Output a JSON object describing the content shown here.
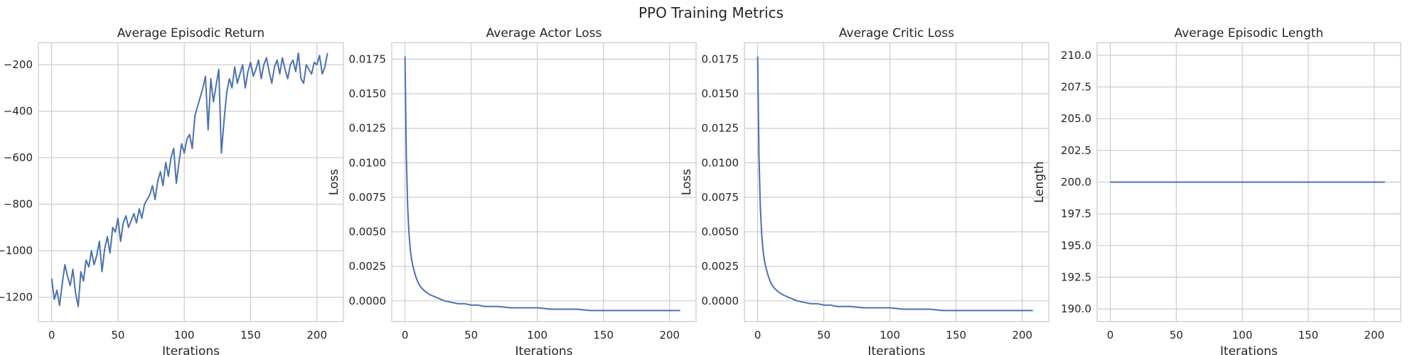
{
  "figure_title": "PPO Training Metrics",
  "colors": {
    "line": "#4c72b0",
    "grid": "#cccccc",
    "frame": "#cccccc",
    "text": "#262626"
  },
  "chart_data": [
    {
      "type": "line",
      "title": "Average Episodic Return",
      "xlabel": "Iterations",
      "ylabel": "",
      "xlim": [
        -10,
        220
      ],
      "ylim": [
        -1305,
        -105
      ],
      "xticks": [
        0,
        50,
        100,
        150,
        200
      ],
      "yticks": [
        -1200,
        -1000,
        -800,
        -600,
        -400,
        -200
      ],
      "xtick_labels": [
        "0",
        "50",
        "100",
        "150",
        "200"
      ],
      "ytick_labels": [
        "−1200",
        "−1000",
        "−800",
        "−600",
        "−400",
        "−200"
      ],
      "grid": true,
      "series": [
        {
          "x": [
            0,
            2,
            4,
            6,
            8,
            10,
            12,
            14,
            16,
            18,
            20,
            22,
            24,
            26,
            28,
            30,
            32,
            34,
            36,
            38,
            40,
            42,
            44,
            46,
            48,
            50,
            52,
            54,
            56,
            58,
            60,
            62,
            64,
            66,
            68,
            70,
            72,
            74,
            76,
            78,
            80,
            82,
            84,
            86,
            88,
            90,
            92,
            94,
            96,
            98,
            100,
            102,
            104,
            106,
            108,
            110,
            112,
            114,
            116,
            118,
            120,
            122,
            124,
            126,
            128,
            130,
            132,
            134,
            136,
            138,
            140,
            142,
            144,
            146,
            148,
            150,
            152,
            154,
            156,
            158,
            160,
            162,
            164,
            166,
            168,
            170,
            172,
            174,
            176,
            178,
            180,
            182,
            184,
            186,
            188,
            190,
            192,
            194,
            196,
            198,
            200,
            202,
            204,
            206,
            208
          ],
          "y": [
            -1120,
            -1210,
            -1170,
            -1235,
            -1140,
            -1060,
            -1110,
            -1150,
            -1080,
            -1180,
            -1240,
            -1090,
            -1130,
            -1040,
            -1070,
            -1000,
            -1060,
            -1020,
            -960,
            -1090,
            -990,
            -940,
            -1010,
            -900,
            -920,
            -860,
            -960,
            -880,
            -850,
            -900,
            -870,
            -840,
            -880,
            -820,
            -860,
            -800,
            -780,
            -760,
            -720,
            -780,
            -700,
            -660,
            -720,
            -620,
            -680,
            -600,
            -560,
            -710,
            -620,
            -540,
            -580,
            -520,
            -500,
            -560,
            -420,
            -380,
            -340,
            -300,
            -250,
            -480,
            -260,
            -360,
            -290,
            -220,
            -580,
            -440,
            -320,
            -260,
            -300,
            -210,
            -280,
            -240,
            -200,
            -300,
            -230,
            -190,
            -250,
            -220,
            -180,
            -260,
            -200,
            -170,
            -230,
            -280,
            -210,
            -180,
            -240,
            -170,
            -220,
            -260,
            -200,
            -180,
            -230,
            -150,
            -260,
            -280,
            -200,
            -220,
            -240,
            -190,
            -200,
            -160,
            -240,
            -210,
            -150
          ]
        }
      ]
    },
    {
      "type": "line",
      "title": "Average Actor Loss",
      "xlabel": "Iterations",
      "ylabel": "Loss",
      "xlim": [
        -10,
        220
      ],
      "ylim": [
        -0.0015,
        0.0187
      ],
      "xticks": [
        0,
        50,
        100,
        150,
        200
      ],
      "yticks": [
        0.0,
        0.0025,
        0.005,
        0.0075,
        0.01,
        0.0125,
        0.015,
        0.0175
      ],
      "xtick_labels": [
        "0",
        "50",
        "100",
        "150",
        "200"
      ],
      "ytick_labels": [
        "0.0000",
        "0.0025",
        "0.0050",
        "0.0075",
        "0.0100",
        "0.0125",
        "0.0150",
        "0.0175"
      ],
      "grid": true,
      "series": [
        {
          "x": [
            0,
            1,
            2,
            3,
            4,
            5,
            6,
            8,
            10,
            12,
            15,
            18,
            20,
            25,
            30,
            35,
            40,
            45,
            50,
            55,
            60,
            70,
            80,
            90,
            100,
            110,
            120,
            130,
            140,
            150,
            160,
            170,
            180,
            190,
            200,
            208
          ],
          "y": [
            0.0177,
            0.0105,
            0.0069,
            0.0049,
            0.0037,
            0.003,
            0.0025,
            0.0018,
            0.0013,
            0.001,
            0.0007,
            0.0005,
            0.0004,
            0.0002,
            0.0,
            -0.0001,
            -0.0002,
            -0.0002,
            -0.0003,
            -0.0003,
            -0.0004,
            -0.0004,
            -0.0005,
            -0.0005,
            -0.0005,
            -0.0006,
            -0.0006,
            -0.0006,
            -0.0007,
            -0.0007,
            -0.0007,
            -0.0007,
            -0.0007,
            -0.0007,
            -0.0007,
            -0.0007
          ]
        }
      ]
    },
    {
      "type": "line",
      "title": "Average Critic Loss",
      "xlabel": "Iterations",
      "ylabel": "Loss",
      "xlim": [
        -10,
        220
      ],
      "ylim": [
        -0.0015,
        0.0187
      ],
      "xticks": [
        0,
        50,
        100,
        150,
        200
      ],
      "yticks": [
        0.0,
        0.0025,
        0.005,
        0.0075,
        0.01,
        0.0125,
        0.015,
        0.0175
      ],
      "xtick_labels": [
        "0",
        "50",
        "100",
        "150",
        "200"
      ],
      "ytick_labels": [
        "0.0000",
        "0.0025",
        "0.0050",
        "0.0075",
        "0.0100",
        "0.0125",
        "0.0150",
        "0.0175"
      ],
      "grid": true,
      "series": [
        {
          "x": [
            0,
            1,
            2,
            3,
            4,
            5,
            6,
            8,
            10,
            12,
            15,
            18,
            20,
            25,
            30,
            35,
            40,
            45,
            50,
            55,
            60,
            70,
            80,
            90,
            100,
            110,
            120,
            130,
            140,
            150,
            160,
            170,
            180,
            190,
            200,
            208
          ],
          "y": [
            0.0177,
            0.0105,
            0.0069,
            0.0049,
            0.0037,
            0.003,
            0.0025,
            0.0018,
            0.0013,
            0.001,
            0.0007,
            0.0005,
            0.0004,
            0.0002,
            0.0,
            -0.0001,
            -0.0002,
            -0.0002,
            -0.0003,
            -0.0003,
            -0.0004,
            -0.0004,
            -0.0005,
            -0.0005,
            -0.0005,
            -0.0006,
            -0.0006,
            -0.0006,
            -0.0007,
            -0.0007,
            -0.0007,
            -0.0007,
            -0.0007,
            -0.0007,
            -0.0007,
            -0.0007
          ]
        }
      ]
    },
    {
      "type": "line",
      "title": "Average Episodic Length",
      "xlabel": "Iterations",
      "ylabel": "Length",
      "xlim": [
        -10,
        220
      ],
      "ylim": [
        189,
        211
      ],
      "xticks": [
        0,
        50,
        100,
        150,
        200
      ],
      "yticks": [
        190,
        192.5,
        195,
        197.5,
        200,
        202.5,
        205,
        207.5,
        210
      ],
      "xtick_labels": [
        "0",
        "50",
        "100",
        "150",
        "200"
      ],
      "ytick_labels": [
        "190.0",
        "192.5",
        "195.0",
        "197.5",
        "200.0",
        "202.5",
        "205.0",
        "207.5",
        "210.0"
      ],
      "grid": true,
      "series": [
        {
          "x": [
            0,
            208
          ],
          "y": [
            200,
            200
          ]
        }
      ]
    }
  ]
}
